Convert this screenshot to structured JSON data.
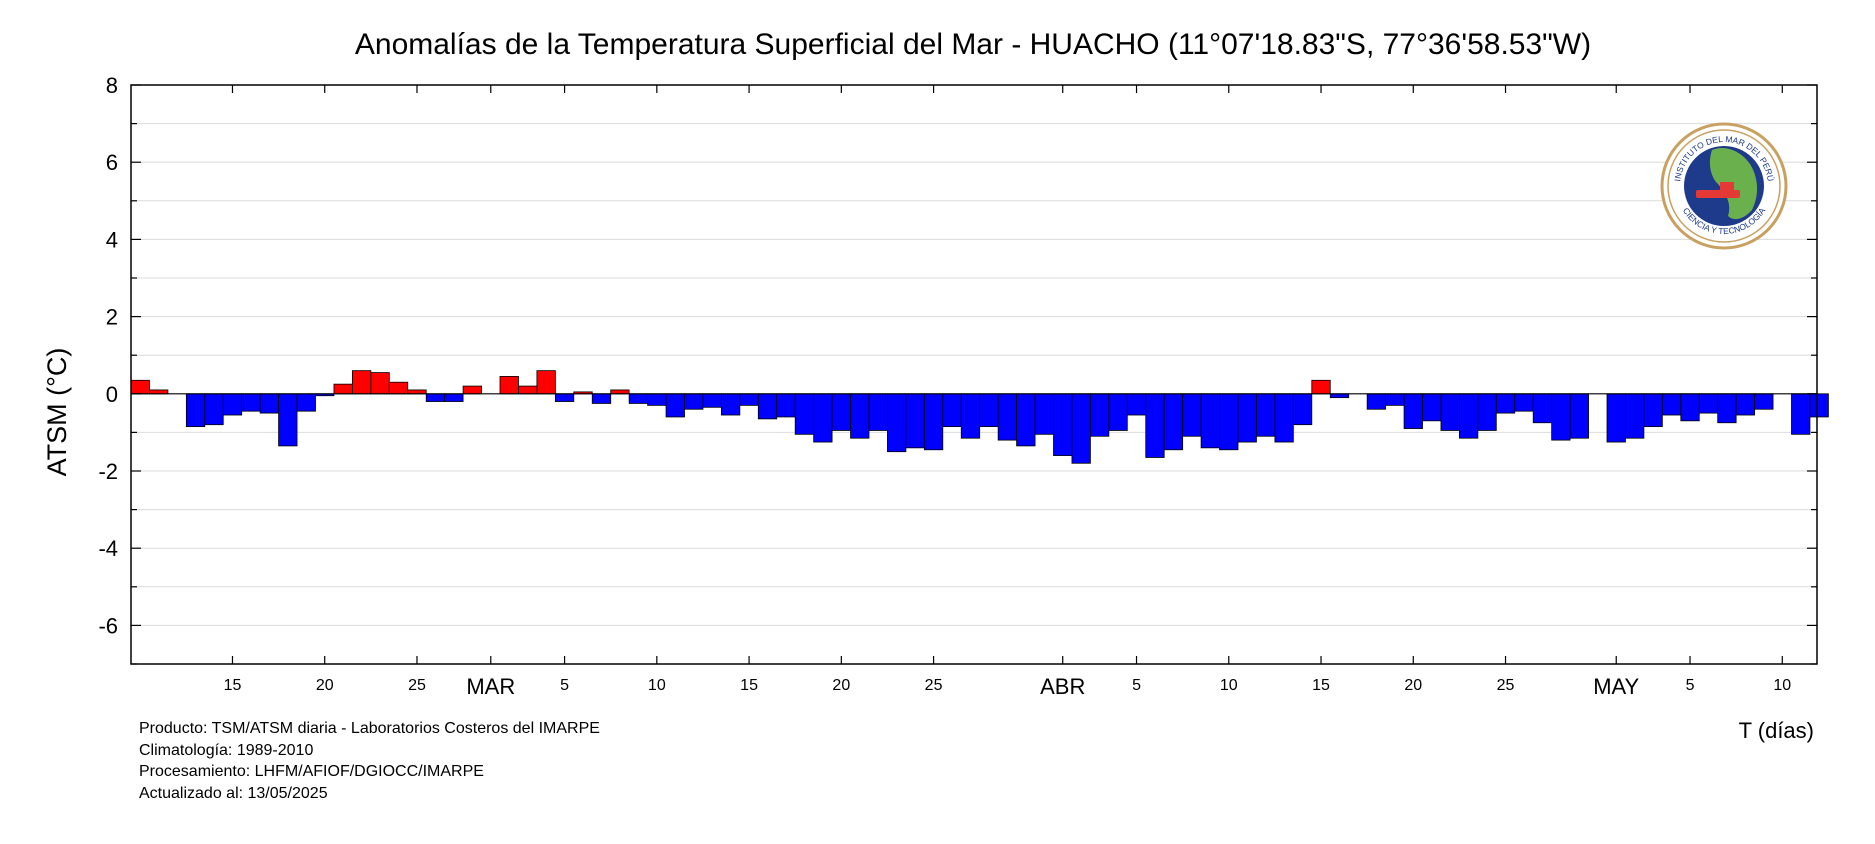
{
  "chart_data": {
    "type": "bar",
    "title": "Anomalías de la Temperatura Superficial del Mar - HUACHO (11°07'18.83\"S, 77°36'58.53\"W)",
    "ylabel": "ATSM (°C)",
    "xlabel": "T (días)",
    "ylim": [
      -7,
      8
    ],
    "yticks": [
      8,
      6,
      4,
      2,
      0,
      -2,
      -4,
      -6
    ],
    "grid": true,
    "x_start": "2025-02-10",
    "x_tick_labels": [
      {
        "date": "2025-02-15",
        "label": "15"
      },
      {
        "date": "2025-02-20",
        "label": "20"
      },
      {
        "date": "2025-02-25",
        "label": "25"
      },
      {
        "date": "2025-03-05",
        "label": "5"
      },
      {
        "date": "2025-03-10",
        "label": "10"
      },
      {
        "date": "2025-03-15",
        "label": "15"
      },
      {
        "date": "2025-03-20",
        "label": "20"
      },
      {
        "date": "2025-03-25",
        "label": "25"
      },
      {
        "date": "2025-04-05",
        "label": "5"
      },
      {
        "date": "2025-04-10",
        "label": "10"
      },
      {
        "date": "2025-04-15",
        "label": "15"
      },
      {
        "date": "2025-04-20",
        "label": "20"
      },
      {
        "date": "2025-04-25",
        "label": "25"
      },
      {
        "date": "2025-05-05",
        "label": "5"
      },
      {
        "date": "2025-05-10",
        "label": "10"
      }
    ],
    "month_labels": [
      {
        "date": "2025-03-01",
        "label": "MAR"
      },
      {
        "date": "2025-04-01",
        "label": "ABR"
      },
      {
        "date": "2025-05-01",
        "label": "MAY"
      }
    ],
    "positive_color": "#ff0000",
    "negative_color": "#0000ff",
    "values": [
      0.35,
      0.1,
      null,
      -0.85,
      -0.8,
      -0.55,
      -0.45,
      -0.5,
      -1.35,
      -0.45,
      -0.05,
      0.25,
      0.6,
      0.55,
      0.3,
      0.1,
      -0.2,
      -0.2,
      0.2,
      0.0,
      0.45,
      0.2,
      0.6,
      -0.2,
      0.05,
      -0.25,
      0.1,
      -0.25,
      -0.3,
      -0.6,
      -0.4,
      -0.35,
      -0.55,
      -0.3,
      -0.65,
      -0.6,
      -1.05,
      -1.25,
      -0.95,
      -1.15,
      -0.95,
      -1.5,
      -1.4,
      -1.45,
      -0.85,
      -1.15,
      -0.85,
      -1.2,
      -1.35,
      -1.05,
      -1.6,
      -1.8,
      -1.1,
      -0.95,
      -0.55,
      -1.65,
      -1.45,
      -1.1,
      -1.4,
      -1.45,
      -1.25,
      -1.1,
      -1.25,
      -0.8,
      0.35,
      -0.1,
      null,
      -0.4,
      -0.3,
      -0.9,
      -0.7,
      -0.95,
      -1.15,
      -0.95,
      -0.5,
      -0.45,
      -0.75,
      -1.2,
      -1.15,
      null,
      -1.25,
      -1.15,
      -0.85,
      -0.55,
      -0.7,
      -0.5,
      -0.75,
      -0.55,
      -0.4,
      null,
      -1.05,
      -0.6
    ]
  },
  "footer": {
    "line1": "Producto: TSM/ATSM diaria - Laboratorios Costeros del IMARPE",
    "line2": "Climatología: 1989-2010",
    "line3": "Procesamiento: LHFM/AFIOF/DGIOCC/IMARPE",
    "line4": "Actualizado al: 13/05/2025"
  },
  "logo": {
    "text_top": "INSTITUTO DEL MAR DEL PERÚ",
    "text_bottom": "CIENCIA Y TECNOLOGÍA",
    "ring_color": "#c8a060",
    "sea_color": "#1e3a8a",
    "land_color": "#6ab04c"
  }
}
